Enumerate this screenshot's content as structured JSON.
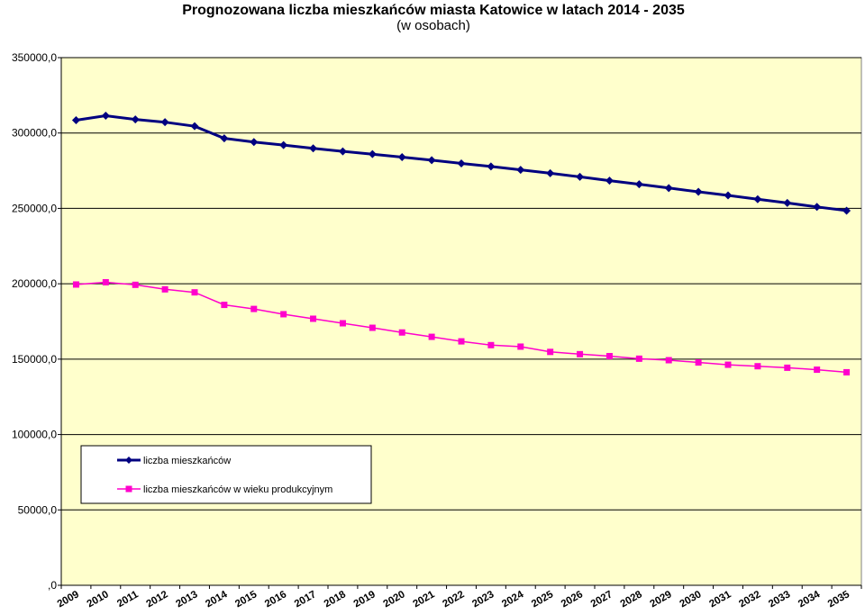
{
  "chart_data": {
    "type": "line",
    "title": "Prognozowana liczba mieszkańców miasta Katowice w latach 2014 - 2035",
    "subtitle": "(w osobach)",
    "x": [
      "2009",
      "2010",
      "2011",
      "2012",
      "2013",
      "2014",
      "2015",
      "2016",
      "2017",
      "2018",
      "2019",
      "2020",
      "2021",
      "2022",
      "2023",
      "2024",
      "2025",
      "2026",
      "2027",
      "2028",
      "2029",
      "2030",
      "2031",
      "2032",
      "2033",
      "2034",
      "2035"
    ],
    "ylim": [
      0,
      350000
    ],
    "yticks": [
      0,
      50000,
      100000,
      150000,
      200000,
      250000,
      300000,
      350000
    ],
    "ytick_labels": [
      ",0",
      "50000,0",
      "100000,0",
      "150000,0",
      "200000,0",
      "250000,0",
      "300000,0",
      "350000,0"
    ],
    "grid": true,
    "legend_position": "lower-left",
    "plot_background": "#FFFFCC",
    "series": [
      {
        "name": "liczba mieszkańców",
        "color": "#000080",
        "marker": "diamond",
        "values": [
          308500,
          311500,
          309000,
          307200,
          304500,
          296500,
          294000,
          292000,
          289800,
          287800,
          286000,
          284000,
          282000,
          279800,
          277800,
          275600,
          273300,
          270900,
          268400,
          266000,
          263500,
          261000,
          258600,
          256100,
          253600,
          251000,
          248500
        ]
      },
      {
        "name": "liczba mieszkańców w wieku produkcyjnym",
        "color": "#FF00CC",
        "marker": "square",
        "values": [
          199500,
          201000,
          199300,
          196300,
          194300,
          186000,
          183300,
          179800,
          176800,
          173800,
          170800,
          167700,
          164800,
          161800,
          159300,
          158300,
          154800,
          153300,
          152000,
          150300,
          149300,
          147800,
          146300,
          145300,
          144300,
          143000,
          141300
        ]
      }
    ]
  }
}
